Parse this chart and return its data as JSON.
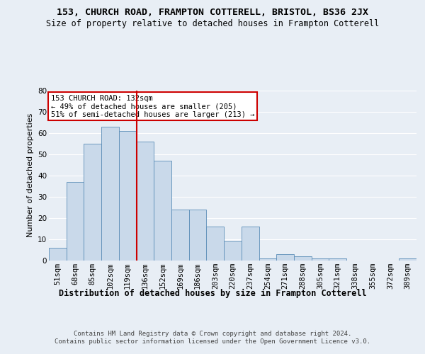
{
  "title": "153, CHURCH ROAD, FRAMPTON COTTERELL, BRISTOL, BS36 2JX",
  "subtitle": "Size of property relative to detached houses in Frampton Cotterell",
  "xlabel": "Distribution of detached houses by size in Frampton Cotterell",
  "ylabel": "Number of detached properties",
  "categories": [
    "51sqm",
    "68sqm",
    "85sqm",
    "102sqm",
    "119sqm",
    "136sqm",
    "152sqm",
    "169sqm",
    "186sqm",
    "203sqm",
    "220sqm",
    "237sqm",
    "254sqm",
    "271sqm",
    "288sqm",
    "305sqm",
    "321sqm",
    "338sqm",
    "355sqm",
    "372sqm",
    "389sqm"
  ],
  "values": [
    6,
    37,
    55,
    63,
    61,
    56,
    47,
    24,
    24,
    16,
    9,
    16,
    1,
    3,
    2,
    1,
    1,
    0,
    0,
    0,
    1
  ],
  "bar_color": "#c9d9ea",
  "bar_edge_color": "#5b8db8",
  "vline_x_index": 4,
  "vline_color": "#cc0000",
  "annotation_text": "153 CHURCH ROAD: 132sqm\n← 49% of detached houses are smaller (205)\n51% of semi-detached houses are larger (213) →",
  "annotation_box_color": "#ffffff",
  "annotation_box_edge": "#cc0000",
  "ylim": [
    0,
    80
  ],
  "yticks": [
    0,
    10,
    20,
    30,
    40,
    50,
    60,
    70,
    80
  ],
  "bg_color": "#e8eef5",
  "plot_bg_color": "#e8eef5",
  "grid_color": "#ffffff",
  "footer": "Contains HM Land Registry data © Crown copyright and database right 2024.\nContains public sector information licensed under the Open Government Licence v3.0.",
  "title_fontsize": 9.5,
  "subtitle_fontsize": 8.5,
  "xlabel_fontsize": 8.5,
  "ylabel_fontsize": 8,
  "footer_fontsize": 6.5,
  "annot_fontsize": 7.5,
  "tick_fontsize": 7.5
}
